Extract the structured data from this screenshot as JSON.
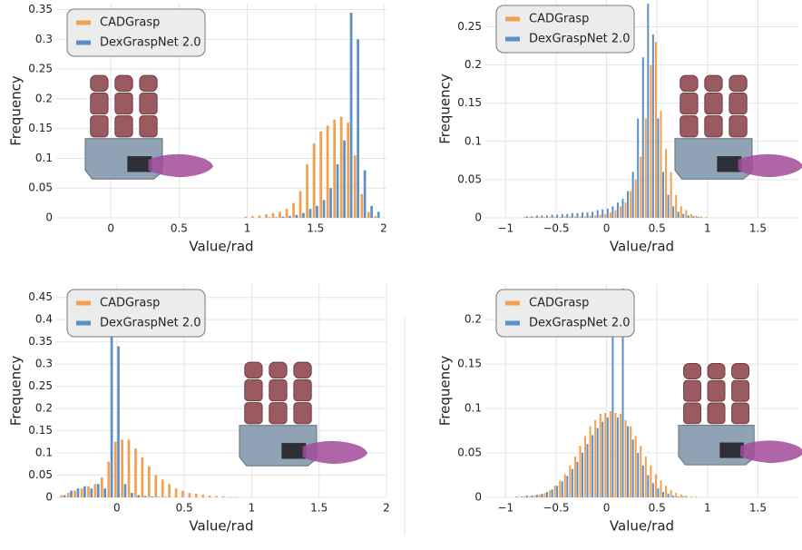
{
  "chart_data": [
    {
      "type": "bar",
      "xlabel": "Value/rad",
      "ylabel": "Frequency",
      "legend": "upper left",
      "grid": true,
      "xlim": [
        -0.4,
        2.02
      ],
      "ylim": [
        0,
        0.36
      ],
      "xticks": [
        0,
        0.5,
        1,
        1.5,
        2
      ],
      "yticks": [
        0,
        0.05,
        0.1,
        0.15,
        0.2,
        0.25,
        0.3,
        0.35
      ],
      "x": [
        1.0,
        1.05,
        1.1,
        1.15,
        1.2,
        1.25,
        1.3,
        1.35,
        1.4,
        1.45,
        1.5,
        1.55,
        1.6,
        1.65,
        1.7,
        1.75,
        1.8,
        1.85,
        1.9,
        1.95
      ],
      "series": [
        {
          "name": "CADGrasp",
          "color": "#f3a04e",
          "values": [
            0.002,
            0.003,
            0.004,
            0.006,
            0.008,
            0.01,
            0.015,
            0.025,
            0.045,
            0.09,
            0.125,
            0.145,
            0.155,
            0.165,
            0.17,
            0.16,
            0.105,
            0.04,
            0.01,
            0.003
          ]
        },
        {
          "name": "DexGraspNet 2.0",
          "color": "#5b8fc7",
          "values": [
            0,
            0,
            0,
            0.001,
            0.001,
            0.002,
            0.003,
            0.005,
            0.008,
            0.015,
            0.02,
            0.03,
            0.05,
            0.09,
            0.13,
            0.345,
            0.3,
            0.08,
            0.02,
            0.01
          ]
        }
      ]
    },
    {
      "type": "bar",
      "xlabel": "Value/rad",
      "ylabel": "Frequency",
      "legend": "upper left",
      "grid": true,
      "xlim": [
        -1.2,
        1.9
      ],
      "ylim": [
        0,
        0.285
      ],
      "xticks": [
        {
          "value": -1,
          "label": "−1"
        },
        {
          "value": -0.5,
          "label": "−0.5"
        },
        0,
        0.5,
        1,
        1.5
      ],
      "yticks": [
        0,
        0.05,
        0.1,
        0.15,
        0.2,
        0.25
      ],
      "x": [
        -0.8,
        -0.75,
        -0.7,
        -0.65,
        -0.6,
        -0.55,
        -0.5,
        -0.45,
        -0.4,
        -0.35,
        -0.3,
        -0.25,
        -0.2,
        -0.15,
        -0.1,
        -0.05,
        0,
        0.05,
        0.1,
        0.15,
        0.2,
        0.25,
        0.3,
        0.35,
        0.4,
        0.45,
        0.5,
        0.55,
        0.6,
        0.65,
        0.7,
        0.75,
        0.8,
        0.85,
        0.9,
        0.95,
        1.0,
        1.05,
        1.1,
        1.15,
        1.2
      ],
      "series": [
        {
          "name": "CADGrasp",
          "color": "#f3a04e",
          "values": [
            0.001,
            0.001,
            0.001,
            0.001,
            0.001,
            0.001,
            0.001,
            0.001,
            0.002,
            0.002,
            0.002,
            0.002,
            0.002,
            0.003,
            0.003,
            0.004,
            0.005,
            0.007,
            0.01,
            0.015,
            0.02,
            0.035,
            0.05,
            0.08,
            0.13,
            0.2,
            0.23,
            0.14,
            0.09,
            0.06,
            0.03,
            0.015,
            0.01,
            0.005,
            0.003,
            0.002,
            0.001,
            0,
            0,
            0,
            0
          ]
        },
        {
          "name": "DexGraspNet 2.0",
          "color": "#5b8fc7",
          "values": [
            0.002,
            0.002,
            0.003,
            0.003,
            0.003,
            0.004,
            0.004,
            0.005,
            0.005,
            0.006,
            0.006,
            0.007,
            0.007,
            0.008,
            0.01,
            0.011,
            0.012,
            0.015,
            0.02,
            0.025,
            0.035,
            0.06,
            0.13,
            0.21,
            0.28,
            0.24,
            0.13,
            0.06,
            0.03,
            0.015,
            0.008,
            0.005,
            0.003,
            0.002,
            0.001,
            0,
            0,
            0,
            0,
            0,
            0
          ]
        }
      ]
    },
    {
      "type": "bar",
      "xlabel": "Value/rad",
      "ylabel": "Frequency",
      "legend": "upper left",
      "grid": true,
      "xlim": [
        -0.45,
        2.0
      ],
      "ylim": [
        0,
        0.48
      ],
      "xticks": [
        0,
        0.5,
        1,
        1.5,
        2
      ],
      "yticks": [
        0,
        0.05,
        0.1,
        0.15,
        0.2,
        0.25,
        0.3,
        0.35,
        0.4,
        0.45
      ],
      "x": [
        -0.4,
        -0.35,
        -0.3,
        -0.25,
        -0.2,
        -0.15,
        -0.1,
        -0.05,
        0,
        0.05,
        0.1,
        0.15,
        0.2,
        0.25,
        0.3,
        0.35,
        0.4,
        0.45,
        0.5,
        0.55,
        0.6,
        0.65,
        0.7,
        0.75,
        0.8,
        0.85,
        0.9,
        0.95,
        1.0
      ],
      "series": [
        {
          "name": "CADGrasp",
          "color": "#f3a04e",
          "values": [
            0.005,
            0.01,
            0.015,
            0.02,
            0.025,
            0.03,
            0.045,
            0.08,
            0.125,
            0.13,
            0.13,
            0.11,
            0.09,
            0.07,
            0.05,
            0.04,
            0.03,
            0.02,
            0.015,
            0.01,
            0.008,
            0.006,
            0.004,
            0.003,
            0.002,
            0.001,
            0.001,
            0,
            0
          ]
        },
        {
          "name": "DexGraspNet 2.0",
          "color": "#5b8fc7",
          "values": [
            0.005,
            0.015,
            0.02,
            0.025,
            0.02,
            0.03,
            0.02,
            0.375,
            0.34,
            0.03,
            0.01,
            0.005,
            0.003,
            0.002,
            0.001,
            0.001,
            0,
            0,
            0,
            0,
            0,
            0,
            0,
            0,
            0,
            0,
            0,
            0,
            0
          ]
        }
      ]
    },
    {
      "type": "bar",
      "xlabel": "Value/rad",
      "ylabel": "Frequency",
      "legend": "upper left",
      "grid": true,
      "xlim": [
        -1.2,
        1.9
      ],
      "ylim": [
        0,
        0.24
      ],
      "xticks": [
        {
          "value": -1,
          "label": "−1"
        },
        {
          "value": -0.5,
          "label": "−0.5"
        },
        0,
        0.5,
        1,
        1.5
      ],
      "yticks": [
        0,
        0.05,
        0.1,
        0.15,
        0.2
      ],
      "x": [
        -0.9,
        -0.85,
        -0.8,
        -0.75,
        -0.7,
        -0.65,
        -0.6,
        -0.55,
        -0.5,
        -0.45,
        -0.4,
        -0.35,
        -0.3,
        -0.25,
        -0.2,
        -0.15,
        -0.1,
        -0.05,
        0,
        0.05,
        0.1,
        0.15,
        0.2,
        0.25,
        0.3,
        0.35,
        0.4,
        0.45,
        0.5,
        0.55,
        0.6,
        0.65,
        0.7,
        0.75,
        0.8,
        0.85,
        0.9,
        0.95,
        1.0,
        1.05,
        1.1
      ],
      "series": [
        {
          "name": "CADGrasp",
          "color": "#f3a04e",
          "values": [
            0,
            0,
            0.001,
            0.001,
            0.002,
            0.003,
            0.005,
            0.008,
            0.013,
            0.019,
            0.026,
            0.036,
            0.046,
            0.058,
            0.069,
            0.08,
            0.087,
            0.094,
            0.095,
            0.097,
            0.095,
            0.094,
            0.087,
            0.08,
            0.069,
            0.058,
            0.046,
            0.036,
            0.026,
            0.019,
            0.013,
            0.008,
            0.005,
            0.003,
            0.002,
            0.001,
            0.001,
            0,
            0,
            0,
            0
          ]
        },
        {
          "name": "DexGraspNet 2.0",
          "color": "#5b8fc7",
          "values": [
            0.001,
            0.001,
            0.002,
            0.002,
            0.003,
            0.004,
            0.006,
            0.009,
            0.013,
            0.018,
            0.024,
            0.032,
            0.04,
            0.05,
            0.06,
            0.07,
            0.078,
            0.085,
            0.09,
            0.195,
            0.09,
            0.235,
            0.08,
            0.065,
            0.05,
            0.036,
            0.025,
            0.016,
            0.01,
            0.006,
            0.004,
            0.002,
            0.001,
            0.001,
            0,
            0,
            0,
            0,
            0,
            0,
            0
          ]
        }
      ]
    }
  ]
}
